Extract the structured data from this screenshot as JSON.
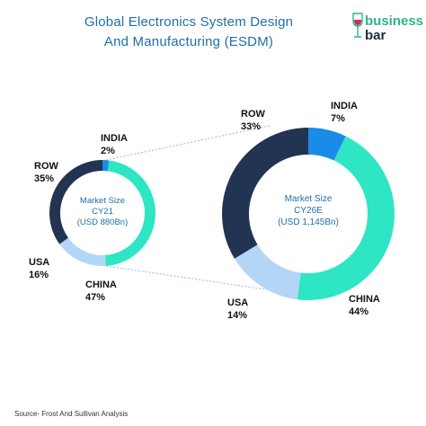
{
  "header": {
    "title_line1": "Global Electronics System Design",
    "title_line2": "And Manufacturing (ESDM)"
  },
  "logo": {
    "brand_line1": "business",
    "brand_line2": "bar"
  },
  "source": "Source- Frost And Sullivan Analysis",
  "colors": {
    "INDIA": "#1a8be6",
    "CHINA": "#2ee6c4",
    "USA": "#b3d6f7",
    "ROW": "#233352",
    "title": "#1f6fa6",
    "center_text": "#1f6fa6",
    "connector": "#8fb9e0"
  },
  "chart_data": [
    {
      "type": "pie",
      "style": "donut",
      "center_lines": [
        "Market Size",
        "CY21",
        "(USD 880Bn)"
      ],
      "slices": [
        {
          "label": "INDIA",
          "value": 2,
          "display": "2%"
        },
        {
          "label": "CHINA",
          "value": 47,
          "display": "47%"
        },
        {
          "label": "USA",
          "value": 16,
          "display": "16%"
        },
        {
          "label": "ROW",
          "value": 35,
          "display": "35%"
        }
      ]
    },
    {
      "type": "pie",
      "style": "donut",
      "center_lines": [
        "Market Size",
        "CY26E",
        "(USD 1,145Bn)"
      ],
      "slices": [
        {
          "label": "INDIA",
          "value": 7,
          "display": "7%"
        },
        {
          "label": "CHINA",
          "value": 44,
          "display": "44%"
        },
        {
          "label": "USA",
          "value": 14,
          "display": "14%"
        },
        {
          "label": "ROW",
          "value": 33,
          "display": "33%"
        }
      ]
    }
  ]
}
